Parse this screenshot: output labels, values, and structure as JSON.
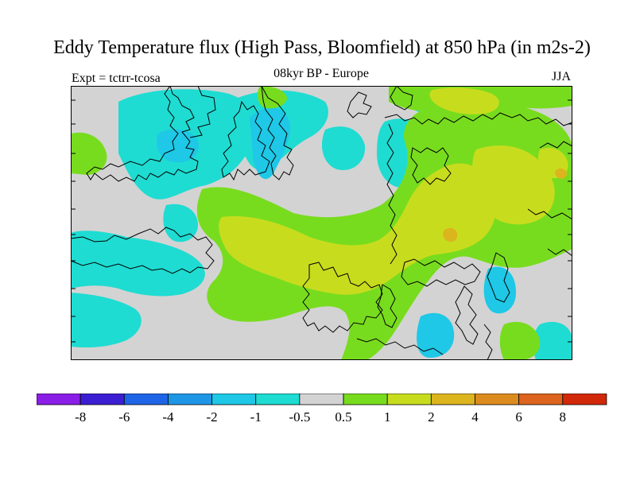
{
  "title": "Eddy Temperature flux (High Pass, Bloomfield) at 850 hPa (in m2s-2)",
  "subtitle_left": "Expt = tctrr-tcosa",
  "subtitle_center": "08kyr BP - Europe",
  "subtitle_right": "JJA",
  "map": {
    "region": "Europe",
    "land_outline_color": "#000000",
    "background_color": "#d3d3d3"
  },
  "colorbar": {
    "colors": [
      "#8a1ee6",
      "#3c1ed2",
      "#1e64e6",
      "#1e96e6",
      "#1ec8e6",
      "#1edcd2",
      "#d3d3d3",
      "#78dc1e",
      "#c8dc1e",
      "#dcb41e",
      "#dc8c1e",
      "#dc641e",
      "#d2280a"
    ],
    "tick_labels": [
      "-8",
      "-6",
      "-4",
      "-2",
      "-1",
      "-0.5",
      "0.5",
      "1",
      "2",
      "4",
      "6",
      "8"
    ]
  }
}
